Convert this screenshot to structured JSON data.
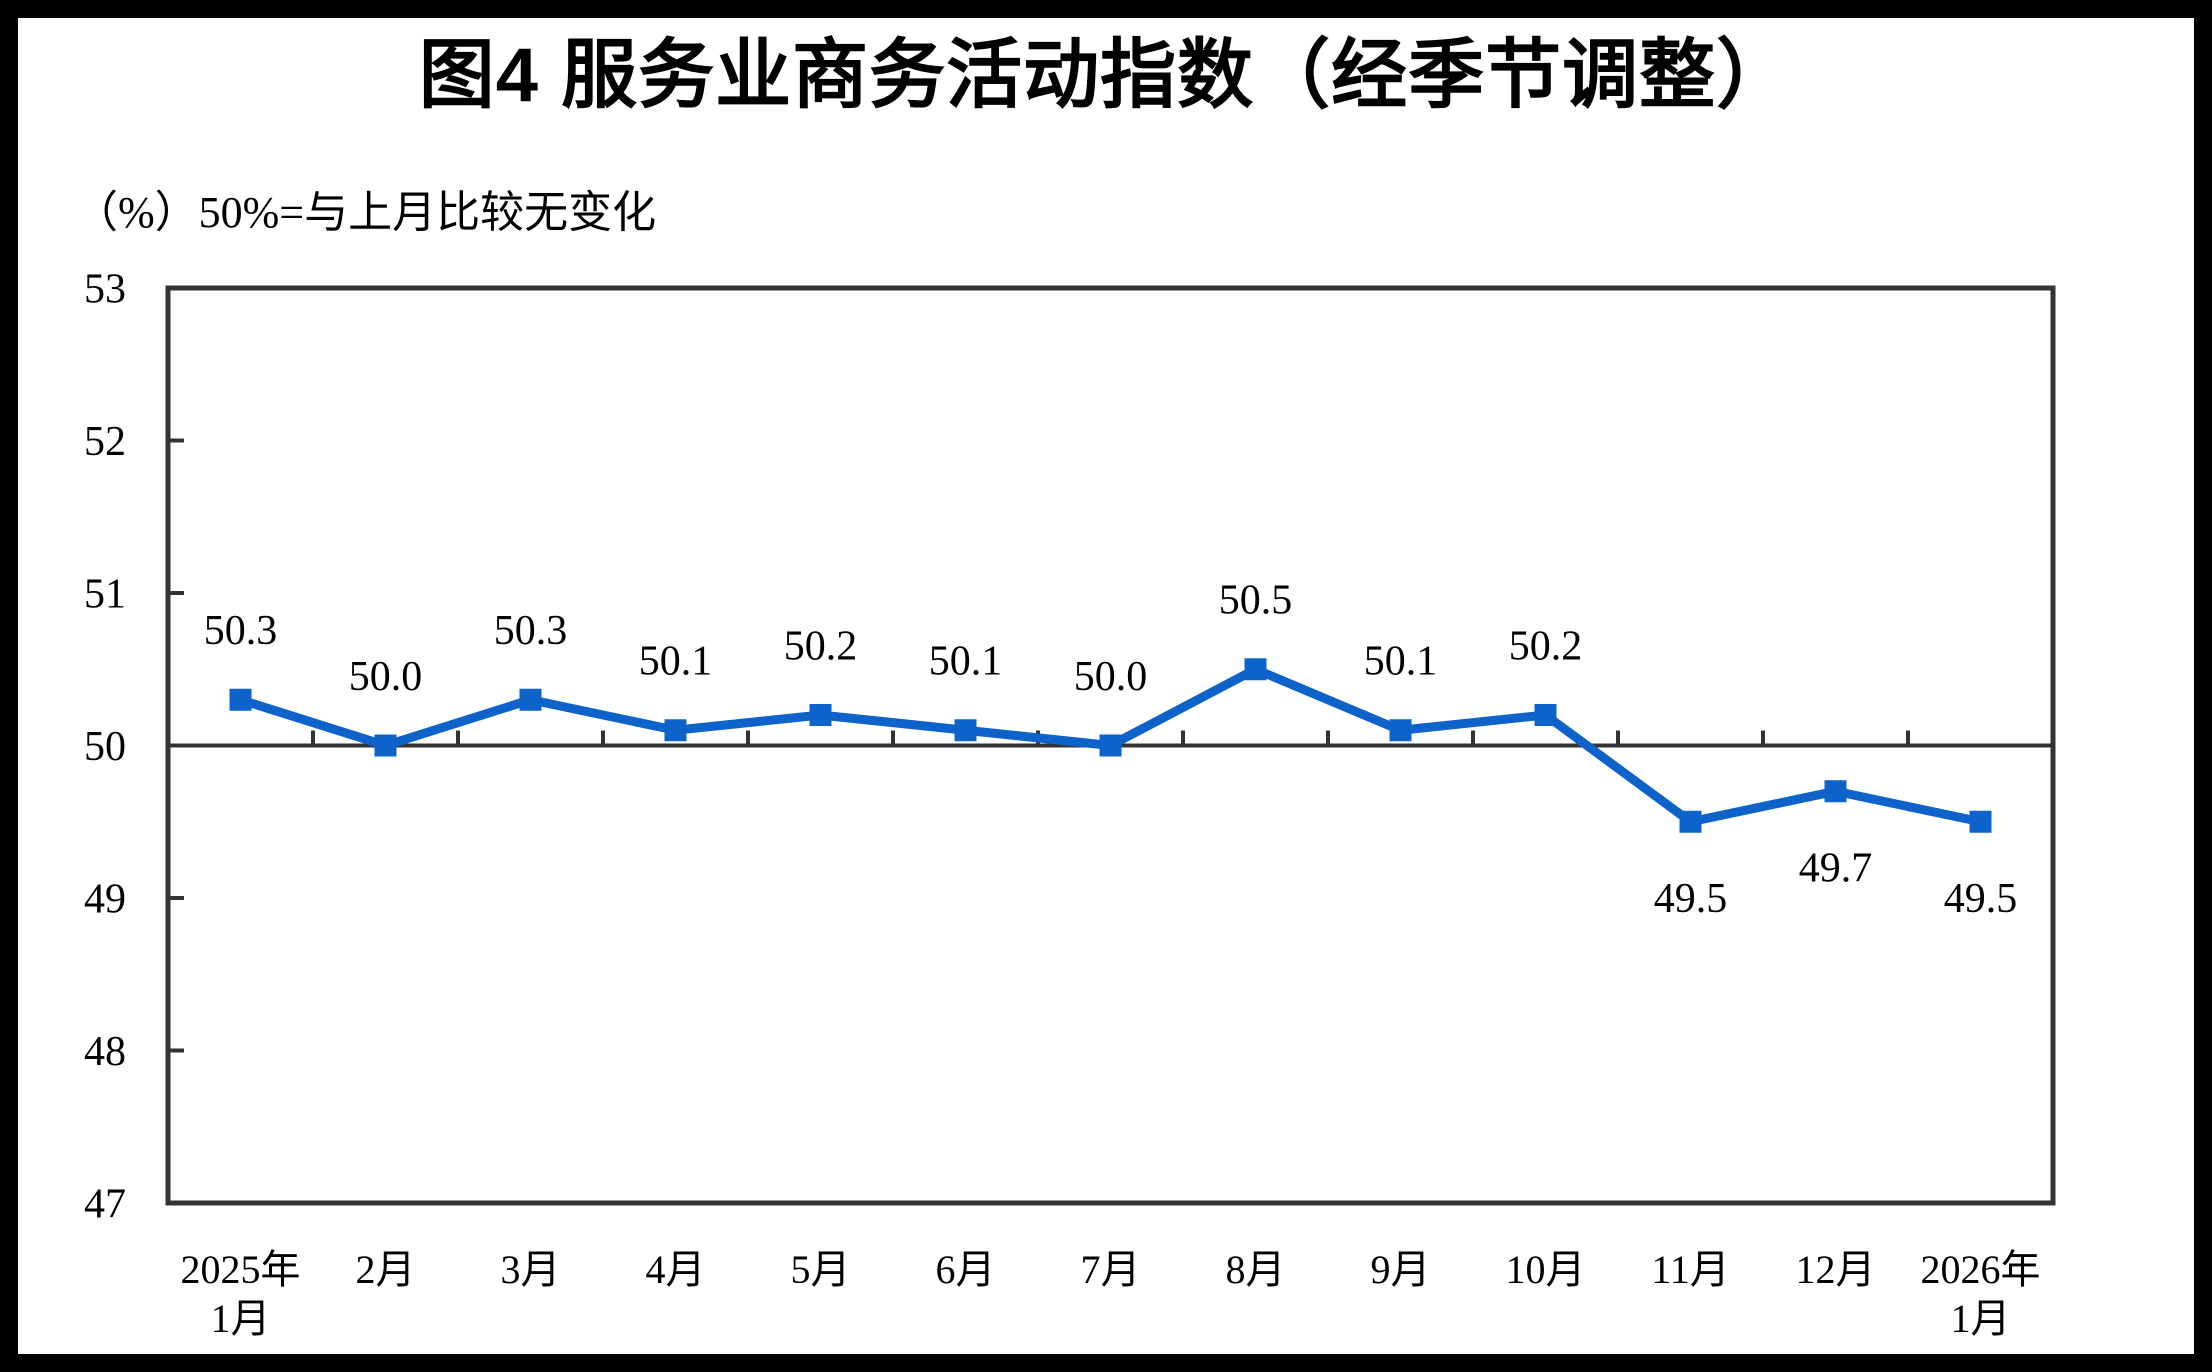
{
  "page": {
    "title": "图4  服务业商务活动指数（经季节调整）",
    "unit_note": "（%）50%=与上月比较无变化"
  },
  "chart_data": {
    "type": "line",
    "title": "图4 服务业商务活动指数（经季节调整）",
    "subtitle": "（%）50%=与上月比较无变化",
    "categories": [
      "2025年1月",
      "2月",
      "3月",
      "4月",
      "5月",
      "6月",
      "7月",
      "8月",
      "9月",
      "10月",
      "11月",
      "12月",
      "2026年1月"
    ],
    "category_label_lines": [
      [
        "2025年",
        "1月"
      ],
      [
        "2月"
      ],
      [
        "3月"
      ],
      [
        "4月"
      ],
      [
        "5月"
      ],
      [
        "6月"
      ],
      [
        "7月"
      ],
      [
        "8月"
      ],
      [
        "9月"
      ],
      [
        "10月"
      ],
      [
        "11月"
      ],
      [
        "12月"
      ],
      [
        "2026年",
        "1月"
      ]
    ],
    "series": [
      {
        "name": "服务业商务活动指数",
        "values": [
          50.3,
          50.0,
          50.3,
          50.1,
          50.2,
          50.1,
          50.0,
          50.5,
          50.1,
          50.2,
          49.5,
          49.7,
          49.5
        ]
      }
    ],
    "data_labels": [
      "50.3",
      "50.0",
      "50.3",
      "50.1",
      "50.2",
      "50.1",
      "50.0",
      "50.5",
      "50.1",
      "50.2",
      "49.5",
      "49.7",
      "49.5"
    ],
    "ylabel": "",
    "xlabel": "",
    "ylim": [
      47,
      53
    ],
    "yticks": [
      47,
      48,
      49,
      50,
      51,
      52,
      53
    ],
    "reference_line": 50,
    "grid": false,
    "legend_position": "none",
    "line_color": "#0d63ca",
    "marker": "square",
    "axis_color": "#333333",
    "background_color": "#ffffff",
    "frame_color": "#000000"
  }
}
